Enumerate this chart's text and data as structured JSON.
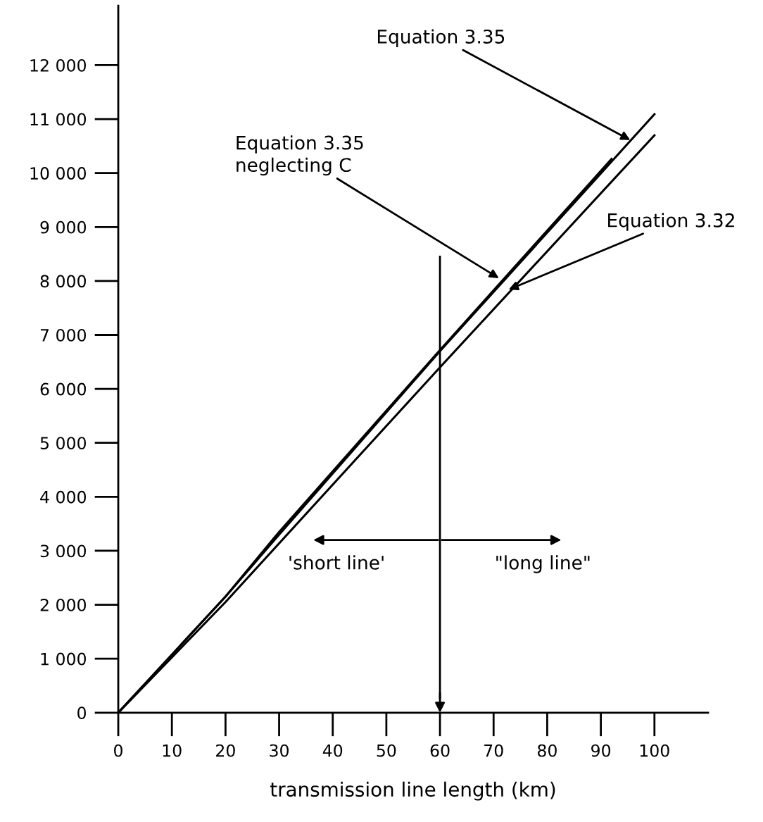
{
  "chart_data": {
    "type": "line",
    "xlabel": "transmission line length (km)",
    "xlim": [
      0,
      110
    ],
    "ylim": [
      0,
      13100
    ],
    "xticks": [
      0,
      10,
      20,
      30,
      40,
      50,
      60,
      70,
      80,
      90,
      100
    ],
    "yticks": [
      0,
      {
        "value": 1000,
        "label": "1 000"
      },
      {
        "value": 2000,
        "label": "2 000"
      },
      {
        "value": 3000,
        "label": "3 000"
      },
      {
        "value": 4000,
        "label": "4 000"
      },
      {
        "value": 5000,
        "label": "5 000"
      },
      {
        "value": 6000,
        "label": "6 000"
      },
      {
        "value": 7000,
        "label": "7 000"
      },
      {
        "value": 8000,
        "label": "8 000"
      },
      {
        "value": 9000,
        "label": "9 000"
      },
      {
        "value": 10000,
        "label": "10 000"
      },
      {
        "value": 11000,
        "label": "11 000"
      },
      {
        "value": 12000,
        "label": "12 000"
      }
    ],
    "grid": false,
    "marker": "none",
    "line_style": "solid",
    "series": [
      {
        "color": "#000000",
        "x": [
          0,
          20,
          30,
          60,
          100
        ],
        "values": [
          0,
          2150,
          3300,
          6700,
          11090
        ]
      },
      {
        "color": "#000000",
        "x": [
          0,
          20,
          30,
          60,
          92
        ],
        "values": [
          0,
          2150,
          3350,
          6720,
          10260
        ]
      },
      {
        "color": "#000000",
        "x": [
          0,
          20,
          60,
          100
        ],
        "values": [
          0,
          2050,
          6400,
          10700
        ]
      }
    ],
    "ref_lines": [
      {
        "axis": "x",
        "value": 60,
        "color": "#000000"
      }
    ],
    "annotations": [
      {
        "text": "Equation 3.35",
        "x": 95.5,
        "y": 10610
      },
      {
        "text": "Equation 3.35\nneglecting C",
        "x": 71,
        "y": 8050
      },
      {
        "text": "Equation 3.32",
        "x": 72.8,
        "y": 7840
      },
      "'short line'",
      "\"long line\""
    ]
  }
}
